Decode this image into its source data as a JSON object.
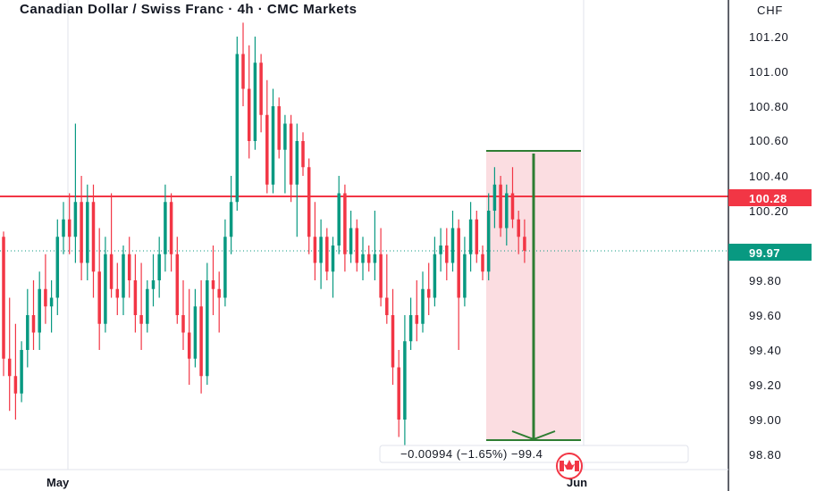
{
  "header": {
    "title": "Canadian Dollar / Swiss Franc · 4h · CMC Markets"
  },
  "price_axis": {
    "currency": "CHF",
    "ticks": [
      "101.20",
      "101.00",
      "100.80",
      "100.60",
      "100.40",
      "100.20",
      "99.80",
      "99.60",
      "99.40",
      "99.20",
      "99.00",
      "98.80"
    ]
  },
  "time_axis": {
    "labels": [
      "May",
      "Jun"
    ]
  },
  "badges": {
    "resistance": {
      "text": "100.28",
      "color": "#f23645"
    },
    "last_price": {
      "text": "99.97",
      "color": "#089981"
    }
  },
  "measure": {
    "text": "−0.00994 (−1.65%) −99.4"
  },
  "colors": {
    "up": "#089981",
    "down": "#f23645",
    "target_fill": "#fbdde1",
    "arrow": "#2e7d32"
  },
  "icons": {
    "flag": "canada-flag-icon"
  },
  "chart_data": {
    "type": "candlestick",
    "title": "Canadian Dollar / Swiss Franc · 4h · CMC Markets",
    "ylabel": "CHF",
    "ylim": [
      98.75,
      101.32
    ],
    "x_labels": [
      "May",
      "Jun"
    ],
    "horizontal_line": 100.28,
    "last_price": 99.97,
    "projection": {
      "from": 100.55,
      "to": 98.88,
      "change": "−0.00994 (−1.65%) −99.4"
    },
    "candles": [
      [
        100.05,
        100.08,
        99.25,
        99.35
      ],
      [
        99.35,
        99.7,
        99.05,
        99.25
      ],
      [
        99.25,
        99.55,
        99.0,
        99.15
      ],
      [
        99.15,
        99.45,
        99.1,
        99.4
      ],
      [
        99.4,
        99.75,
        99.3,
        99.6
      ],
      [
        99.6,
        99.8,
        99.4,
        99.5
      ],
      [
        99.5,
        99.85,
        99.4,
        99.75
      ],
      [
        99.75,
        99.95,
        99.55,
        99.65
      ],
      [
        99.65,
        99.8,
        99.5,
        99.7
      ],
      [
        99.7,
        100.15,
        99.6,
        100.05
      ],
      [
        100.05,
        100.25,
        99.95,
        100.15
      ],
      [
        100.15,
        100.3,
        99.95,
        100.05
      ],
      [
        100.05,
        100.7,
        99.9,
        100.25
      ],
      [
        100.25,
        100.4,
        99.8,
        99.9
      ],
      [
        99.9,
        100.35,
        99.8,
        100.25
      ],
      [
        100.25,
        100.35,
        99.7,
        99.85
      ],
      [
        99.85,
        100.1,
        99.4,
        99.55
      ],
      [
        99.55,
        100.05,
        99.5,
        99.95
      ],
      [
        99.95,
        100.3,
        99.7,
        99.75
      ],
      [
        99.75,
        99.9,
        99.6,
        99.7
      ],
      [
        99.7,
        100.0,
        99.6,
        99.95
      ],
      [
        99.95,
        100.05,
        99.7,
        99.8
      ],
      [
        99.8,
        99.95,
        99.5,
        99.6
      ],
      [
        99.6,
        99.9,
        99.4,
        99.55
      ],
      [
        99.55,
        99.8,
        99.5,
        99.75
      ],
      [
        99.75,
        99.95,
        99.65,
        99.8
      ],
      [
        99.8,
        100.05,
        99.7,
        99.95
      ],
      [
        99.95,
        100.35,
        99.85,
        100.25
      ],
      [
        100.25,
        100.3,
        99.85,
        99.95
      ],
      [
        99.95,
        100.05,
        99.55,
        99.6
      ],
      [
        99.6,
        99.8,
        99.4,
        99.5
      ],
      [
        99.5,
        99.75,
        99.2,
        99.35
      ],
      [
        99.35,
        99.75,
        99.3,
        99.65
      ],
      [
        99.65,
        99.8,
        99.15,
        99.25
      ],
      [
        99.25,
        99.9,
        99.2,
        99.8
      ],
      [
        99.8,
        100.0,
        99.6,
        99.75
      ],
      [
        99.75,
        99.85,
        99.5,
        99.7
      ],
      [
        99.7,
        100.15,
        99.65,
        100.05
      ],
      [
        100.05,
        100.4,
        99.95,
        100.25
      ],
      [
        100.25,
        101.2,
        100.2,
        101.1
      ],
      [
        101.1,
        101.28,
        100.8,
        100.9
      ],
      [
        100.9,
        101.15,
        100.5,
        100.6
      ],
      [
        100.6,
        101.2,
        100.55,
        101.05
      ],
      [
        101.05,
        101.1,
        100.65,
        100.75
      ],
      [
        100.75,
        100.95,
        100.3,
        100.35
      ],
      [
        100.35,
        100.9,
        100.3,
        100.8
      ],
      [
        100.8,
        100.85,
        100.5,
        100.55
      ],
      [
        100.55,
        100.75,
        100.3,
        100.7
      ],
      [
        100.7,
        100.75,
        100.25,
        100.35
      ],
      [
        100.35,
        100.7,
        100.05,
        100.6
      ],
      [
        100.6,
        100.65,
        100.4,
        100.45
      ],
      [
        100.45,
        100.5,
        99.95,
        100.05
      ],
      [
        100.05,
        100.25,
        99.8,
        99.9
      ],
      [
        99.9,
        100.15,
        99.75,
        100.05
      ],
      [
        100.05,
        100.1,
        99.8,
        99.85
      ],
      [
        99.85,
        100.05,
        99.7,
        100.0
      ],
      [
        100.0,
        100.4,
        99.95,
        100.3
      ],
      [
        100.3,
        100.35,
        99.85,
        99.95
      ],
      [
        99.95,
        100.2,
        99.9,
        100.1
      ],
      [
        100.1,
        100.15,
        99.85,
        99.9
      ],
      [
        99.9,
        100.05,
        99.8,
        99.95
      ],
      [
        99.95,
        100.0,
        99.85,
        99.9
      ],
      [
        99.9,
        100.2,
        99.8,
        99.95
      ],
      [
        99.95,
        100.1,
        99.65,
        99.7
      ],
      [
        99.7,
        99.95,
        99.55,
        99.6
      ],
      [
        99.6,
        99.75,
        99.2,
        99.3
      ],
      [
        99.3,
        99.4,
        98.9,
        99.0
      ],
      [
        99.0,
        99.6,
        98.85,
        99.45
      ],
      [
        99.45,
        99.7,
        99.4,
        99.6
      ],
      [
        99.6,
        99.8,
        99.45,
        99.55
      ],
      [
        99.55,
        99.85,
        99.5,
        99.75
      ],
      [
        99.75,
        99.9,
        99.6,
        99.7
      ],
      [
        99.7,
        100.05,
        99.65,
        99.95
      ],
      [
        99.95,
        100.1,
        99.85,
        100.0
      ],
      [
        100.0,
        100.1,
        99.8,
        99.9
      ],
      [
        99.9,
        100.2,
        99.85,
        100.1
      ],
      [
        100.1,
        100.15,
        99.4,
        99.7
      ],
      [
        99.7,
        100.05,
        99.65,
        99.95
      ],
      [
        99.95,
        100.25,
        99.85,
        100.15
      ],
      [
        100.15,
        100.2,
        99.9,
        99.95
      ],
      [
        99.95,
        100.0,
        99.8,
        99.85
      ],
      [
        99.85,
        100.3,
        99.8,
        100.2
      ],
      [
        100.2,
        100.45,
        100.1,
        100.35
      ],
      [
        100.35,
        100.4,
        100.05,
        100.1
      ],
      [
        100.1,
        100.35,
        100.0,
        100.3
      ],
      [
        100.3,
        100.45,
        100.1,
        100.15
      ],
      [
        100.15,
        100.2,
        99.95,
        100.05
      ],
      [
        100.05,
        100.15,
        99.9,
        99.97
      ]
    ]
  }
}
